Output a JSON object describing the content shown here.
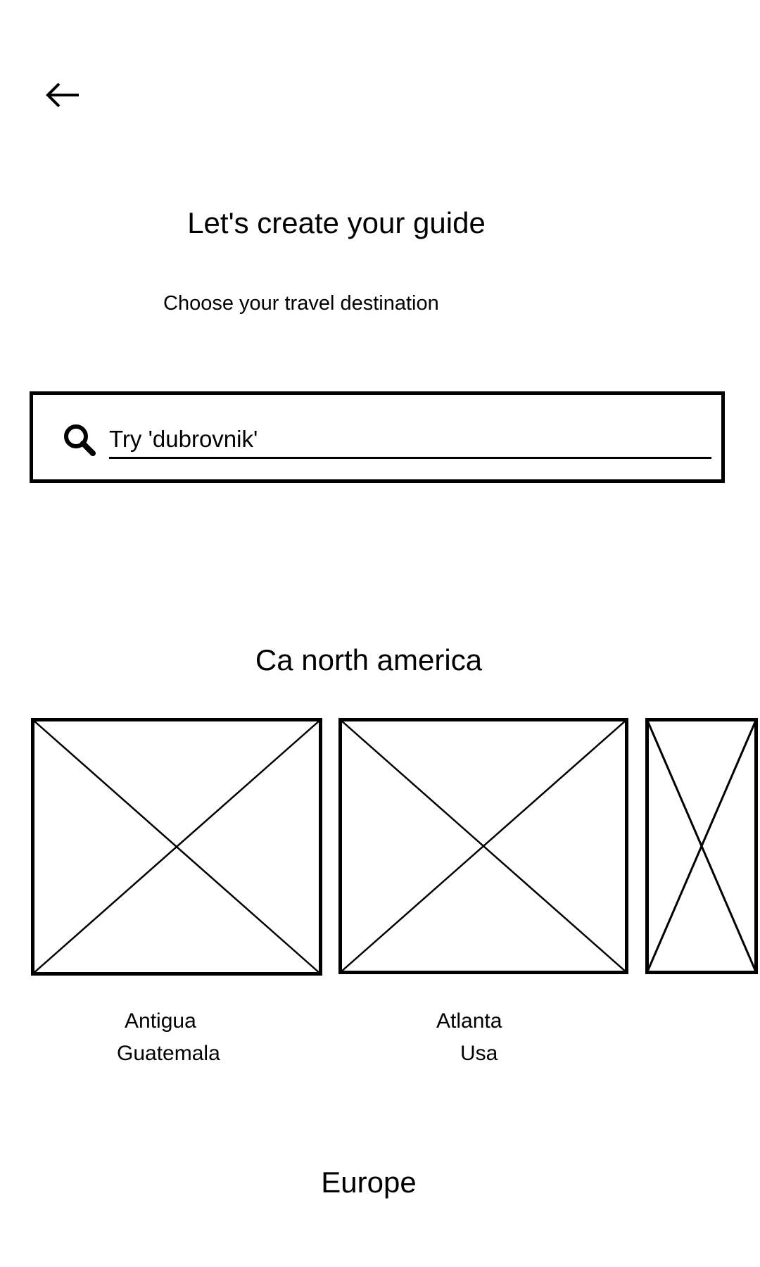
{
  "header": {
    "back_icon": "arrow-left-icon"
  },
  "intro": {
    "title": "Let's create your guide",
    "subtitle": "Choose your travel destination"
  },
  "search": {
    "icon": "search-icon",
    "placeholder": "Try 'dubrovnik'",
    "value": ""
  },
  "sections": [
    {
      "title": "Ca north america",
      "destinations": [
        {
          "name": "Antigua",
          "country": "Guatemala"
        },
        {
          "name": "Atlanta",
          "country": "Usa"
        },
        {
          "name": "",
          "country": ""
        }
      ]
    },
    {
      "title": "Europe"
    }
  ]
}
